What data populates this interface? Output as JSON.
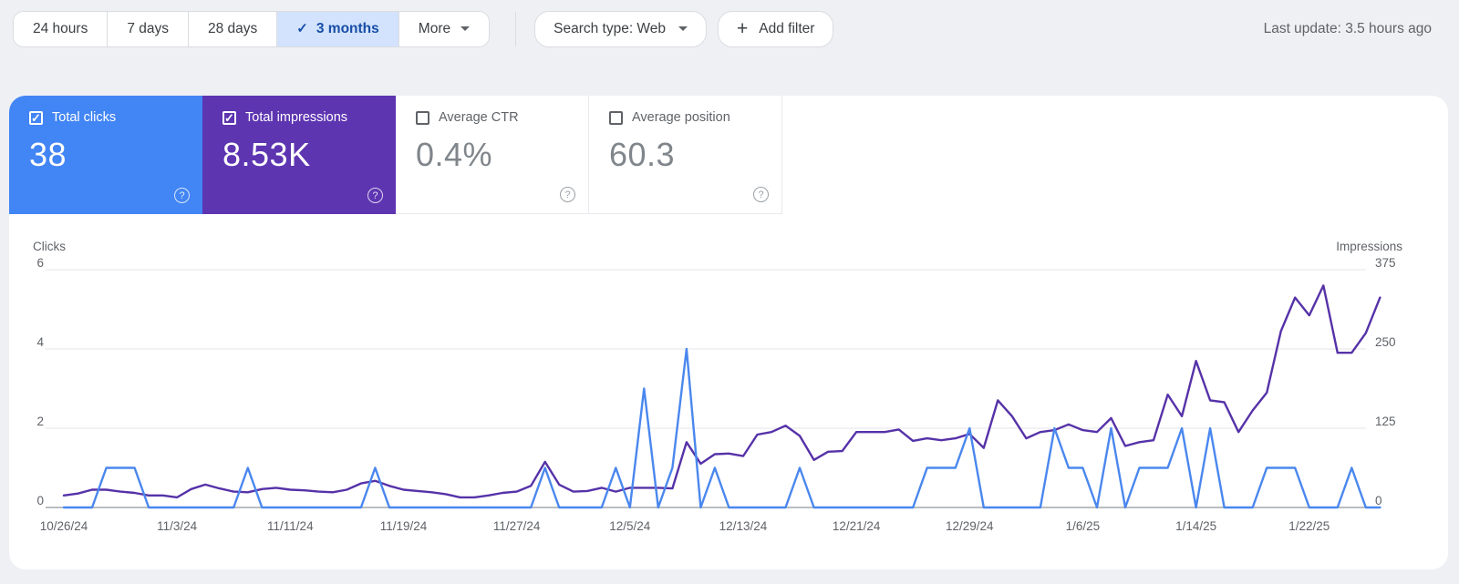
{
  "toolbar": {
    "date_ranges": [
      {
        "label": "24 hours",
        "selected": false
      },
      {
        "label": "7 days",
        "selected": false
      },
      {
        "label": "28 days",
        "selected": false
      },
      {
        "label": "3 months",
        "selected": true
      }
    ],
    "more_label": "More",
    "search_type_label": "Search type: Web",
    "add_filter_label": "Add filter",
    "last_update": "Last update: 3.5 hours ago"
  },
  "metrics": [
    {
      "label": "Total clicks",
      "value": "38",
      "checked": true,
      "color": "#4285f4"
    },
    {
      "label": "Total impressions",
      "value": "8.53K",
      "checked": true,
      "color": "#5e35b1"
    },
    {
      "label": "Average CTR",
      "value": "0.4%",
      "checked": false,
      "color": "#ffffff"
    },
    {
      "label": "Average position",
      "value": "60.3",
      "checked": false,
      "color": "#ffffff"
    }
  ],
  "chart_data": {
    "type": "line",
    "x": [
      "10/26/24",
      "10/27/24",
      "10/28/24",
      "10/29/24",
      "10/30/24",
      "10/31/24",
      "11/1/24",
      "11/2/24",
      "11/3/24",
      "11/4/24",
      "11/5/24",
      "11/6/24",
      "11/7/24",
      "11/8/24",
      "11/9/24",
      "11/10/24",
      "11/11/24",
      "11/12/24",
      "11/13/24",
      "11/14/24",
      "11/15/24",
      "11/16/24",
      "11/17/24",
      "11/18/24",
      "11/19/24",
      "11/20/24",
      "11/21/24",
      "11/22/24",
      "11/23/24",
      "11/24/24",
      "11/25/24",
      "11/26/24",
      "11/27/24",
      "11/28/24",
      "11/29/24",
      "11/30/24",
      "12/1/24",
      "12/2/24",
      "12/3/24",
      "12/4/24",
      "12/5/24",
      "12/6/24",
      "12/7/24",
      "12/8/24",
      "12/9/24",
      "12/10/24",
      "12/11/24",
      "12/12/24",
      "12/13/24",
      "12/14/24",
      "12/15/24",
      "12/16/24",
      "12/17/24",
      "12/18/24",
      "12/19/24",
      "12/20/24",
      "12/21/24",
      "12/22/24",
      "12/23/24",
      "12/24/24",
      "12/25/24",
      "12/26/24",
      "12/27/24",
      "12/28/24",
      "12/29/24",
      "12/30/24",
      "12/31/24",
      "1/1/25",
      "1/2/25",
      "1/3/25",
      "1/4/25",
      "1/5/25",
      "1/6/25",
      "1/7/25",
      "1/8/25",
      "1/9/25",
      "1/10/25",
      "1/11/25",
      "1/12/25",
      "1/13/25",
      "1/14/25",
      "1/15/25",
      "1/16/25",
      "1/17/25",
      "1/18/25",
      "1/19/25",
      "1/20/25",
      "1/21/25",
      "1/22/25",
      "1/23/25",
      "1/24/25",
      "1/25/25",
      "1/26/25",
      "1/27/25"
    ],
    "series": [
      {
        "name": "Total clicks",
        "axis": "left",
        "color": "#4a87ee",
        "values": [
          0,
          0,
          0,
          1,
          1,
          1,
          0,
          0,
          0,
          0,
          0,
          0,
          0,
          1,
          0,
          0,
          0,
          0,
          0,
          0,
          0,
          0,
          1,
          0,
          0,
          0,
          0,
          0,
          0,
          0,
          0,
          0,
          0,
          0,
          1,
          0,
          0,
          0,
          0,
          1,
          0,
          3,
          0,
          1,
          4,
          0,
          1,
          0,
          0,
          0,
          0,
          0,
          1,
          0,
          0,
          0,
          0,
          0,
          0,
          0,
          0,
          1,
          1,
          1,
          2,
          0,
          0,
          0,
          0,
          0,
          2,
          1,
          1,
          0,
          2,
          0,
          1,
          1,
          1,
          2,
          0,
          2,
          0,
          0,
          0,
          1,
          1,
          1,
          0,
          0,
          0,
          1,
          0,
          0
        ]
      },
      {
        "name": "Total impressions",
        "axis": "right",
        "color": "#5632a8",
        "values": [
          19,
          22,
          28,
          28,
          25,
          23,
          19,
          19,
          16,
          29,
          36,
          30,
          25,
          24,
          29,
          31,
          28,
          27,
          25,
          24,
          28,
          38,
          42,
          34,
          28,
          26,
          24,
          21,
          16,
          16,
          19,
          23,
          25,
          34,
          72,
          36,
          25,
          26,
          31,
          25,
          31,
          31,
          31,
          30,
          103,
          69,
          84,
          85,
          81,
          115,
          119,
          129,
          113,
          75,
          88,
          89,
          119,
          119,
          119,
          123,
          105,
          109,
          106,
          109,
          116,
          94,
          169,
          144,
          109,
          119,
          122,
          131,
          122,
          119,
          141,
          97,
          103,
          106,
          178,
          144,
          231,
          169,
          166,
          119,
          153,
          181,
          278,
          331,
          303,
          350,
          244,
          244,
          275,
          331
        ]
      }
    ],
    "left_axis": {
      "label": "Clicks",
      "ticks": [
        0,
        2,
        4,
        6
      ],
      "max": 6
    },
    "right_axis": {
      "label": "Impressions",
      "ticks": [
        0,
        125,
        250,
        375
      ],
      "max": 375
    },
    "x_ticks": {
      "indices": [
        0,
        8,
        16,
        24,
        32,
        40,
        48,
        56,
        64,
        72,
        80,
        88
      ],
      "labels": [
        "10/26/24",
        "11/3/24",
        "11/11/24",
        "11/19/24",
        "11/27/24",
        "12/5/24",
        "12/13/24",
        "12/21/24",
        "12/29/24",
        "1/6/25",
        "1/14/25",
        "1/22/25"
      ]
    },
    "grid": true,
    "legend_position": "none"
  },
  "colors": {
    "page_background": "#eef0f4",
    "selected_range_bg": "#d3e3fd",
    "selected_range_text": "#174ea6",
    "clicks_accent": "#4285f4",
    "impressions_accent": "#5e35b1"
  }
}
